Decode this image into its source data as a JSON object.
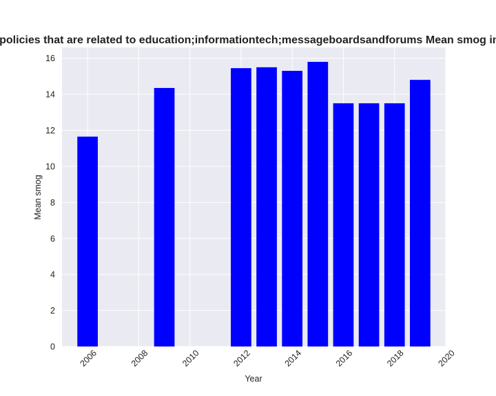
{
  "chart_data": {
    "type": "bar",
    "title": "Mean smog in privacy policies that are related to education;informationtech;messageboardsandforums Mean smog in privacy policies by year",
    "xlabel": "Year",
    "ylabel": "Mean smog",
    "x": [
      2006,
      2009,
      2012,
      2013,
      2014,
      2015,
      2016,
      2017,
      2018,
      2019
    ],
    "values": [
      11.65,
      14.35,
      15.45,
      15.5,
      15.3,
      15.8,
      13.5,
      13.5,
      13.5,
      14.8
    ],
    "xlim": [
      2005,
      2020
    ],
    "ylim": [
      0,
      16.6
    ],
    "xticks": [
      2006,
      2008,
      2010,
      2012,
      2014,
      2016,
      2018,
      2020
    ],
    "yticks": [
      0,
      2,
      4,
      6,
      8,
      10,
      12,
      14,
      16
    ],
    "bar_width_years": 0.8,
    "grid": true,
    "colors": {
      "bar": "#0000ff",
      "plot_background": "#eaeaf2",
      "grid": "#ffffff"
    }
  }
}
